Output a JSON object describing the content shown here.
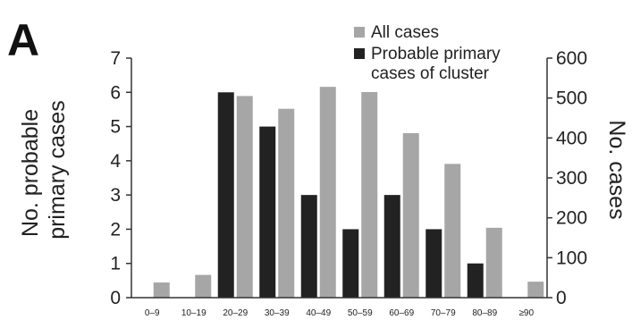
{
  "panel_label": "A",
  "chart_data": {
    "type": "bar",
    "categories": [
      "0–9",
      "10–19",
      "20–29",
      "30–39",
      "40–49",
      "50–59",
      "60–69",
      "70–79",
      "80–89",
      "≥90"
    ],
    "series": [
      {
        "name": "All cases",
        "axis": "right",
        "color": "#a6a6a6",
        "values": [
          38,
          57,
          505,
          473,
          528,
          515,
          412,
          335,
          175,
          40
        ]
      },
      {
        "name": "Probable primary cases of cluster",
        "legend_lines": [
          "Probable primary",
          "cases of cluster"
        ],
        "axis": "left",
        "color": "#222222",
        "values": [
          0,
          0,
          6,
          5,
          3,
          2,
          3,
          2,
          1,
          0
        ]
      }
    ],
    "ylabel_left_lines": [
      "No. probable",
      "primary cases"
    ],
    "ylabel_right": "No. cases",
    "ylim_left": [
      0,
      7
    ],
    "yticks_left": [
      "0",
      "1",
      "2",
      "3",
      "4",
      "5",
      "6",
      "7"
    ],
    "ylim_right": [
      0,
      600
    ],
    "yticks_right": [
      "0",
      "100",
      "200",
      "300",
      "400",
      "500",
      "600"
    ],
    "grid": false,
    "legend": "top-right"
  }
}
